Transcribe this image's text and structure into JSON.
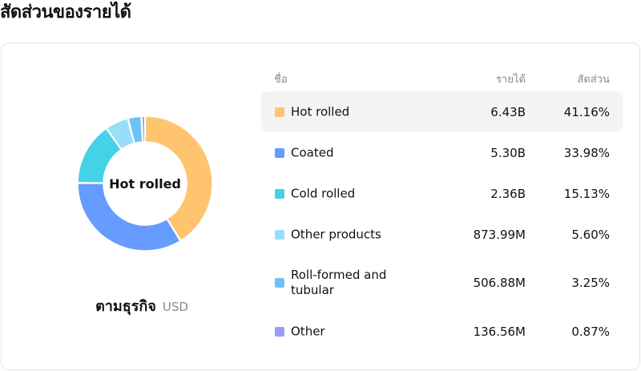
{
  "page": {
    "title": "สัดส่วนของรายได้"
  },
  "donut": {
    "center_label": "Hot rolled"
  },
  "breakdown": {
    "label": "ตามธุรกิจ",
    "currency": "USD"
  },
  "table": {
    "headers": {
      "name": "ชื่อ",
      "revenue": "รายได้",
      "share": "สัดส่วน"
    },
    "rows": [
      {
        "name": "Hot rolled",
        "revenue": "6.43B",
        "share": "41.16%",
        "color": "#FFC46E"
      },
      {
        "name": "Coated",
        "revenue": "5.30B",
        "share": "33.98%",
        "color": "#669CFF"
      },
      {
        "name": "Cold rolled",
        "revenue": "2.36B",
        "share": "15.13%",
        "color": "#44D2E6"
      },
      {
        "name": "Other products",
        "revenue": "873.99M",
        "share": "5.60%",
        "color": "#99DDFA"
      },
      {
        "name": "Roll-formed and tubular",
        "revenue": "506.88M",
        "share": "3.25%",
        "color": "#6EC1F7"
      },
      {
        "name": "Other",
        "revenue": "136.56M",
        "share": "0.87%",
        "color": "#9B9CF5"
      }
    ]
  },
  "chart_data": {
    "type": "pie",
    "categories": [
      "Hot rolled",
      "Coated",
      "Cold rolled",
      "Other products",
      "Roll-formed and tubular",
      "Other"
    ],
    "values": [
      41.16,
      33.98,
      15.13,
      5.6,
      3.25,
      0.87
    ],
    "colors": [
      "#FFC46E",
      "#669CFF",
      "#44D2E6",
      "#99DDFA",
      "#6EC1F7",
      "#9B9CF5"
    ],
    "highlighted": "Hot rolled"
  }
}
